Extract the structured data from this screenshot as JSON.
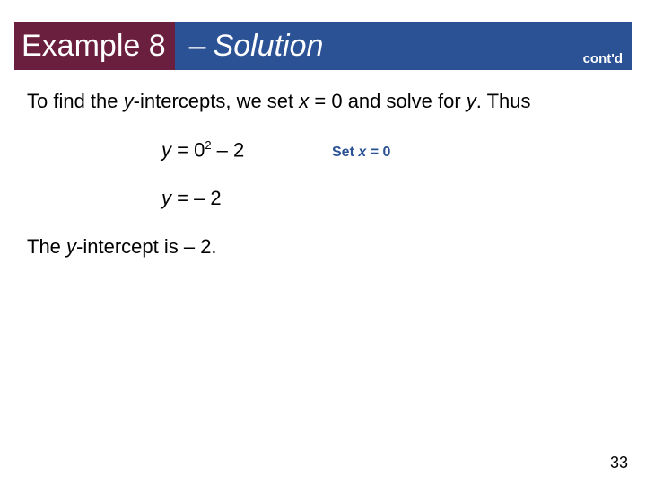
{
  "colors": {
    "title_left_bg": "#6b1f3e",
    "title_right_bg": "#2b5295",
    "title_text": "#ffffff",
    "note_text": "#2b5295",
    "body_text": "#000000"
  },
  "title": {
    "left": "Example 8",
    "dash": "–",
    "right_italic": "Solution",
    "contd": "cont'd"
  },
  "body": {
    "intro_before": "To find the ",
    "intro_y": "y",
    "intro_mid": "-intercepts, we set ",
    "intro_x": "x",
    "intro_mid2": " = 0 and solve for ",
    "intro_y2": "y",
    "intro_end": ". Thus",
    "eq1_y": "y",
    "eq1_mid": " = 0",
    "eq1_sup": "2",
    "eq1_tail": " – 2",
    "note1_a": "Set ",
    "note1_x": "x",
    "note1_b": " = 0",
    "eq2_y": "y",
    "eq2_tail": " = – 2",
    "conclusion_a": "The ",
    "conclusion_y": "y",
    "conclusion_b": "-intercept is – 2."
  },
  "page_number": "33"
}
